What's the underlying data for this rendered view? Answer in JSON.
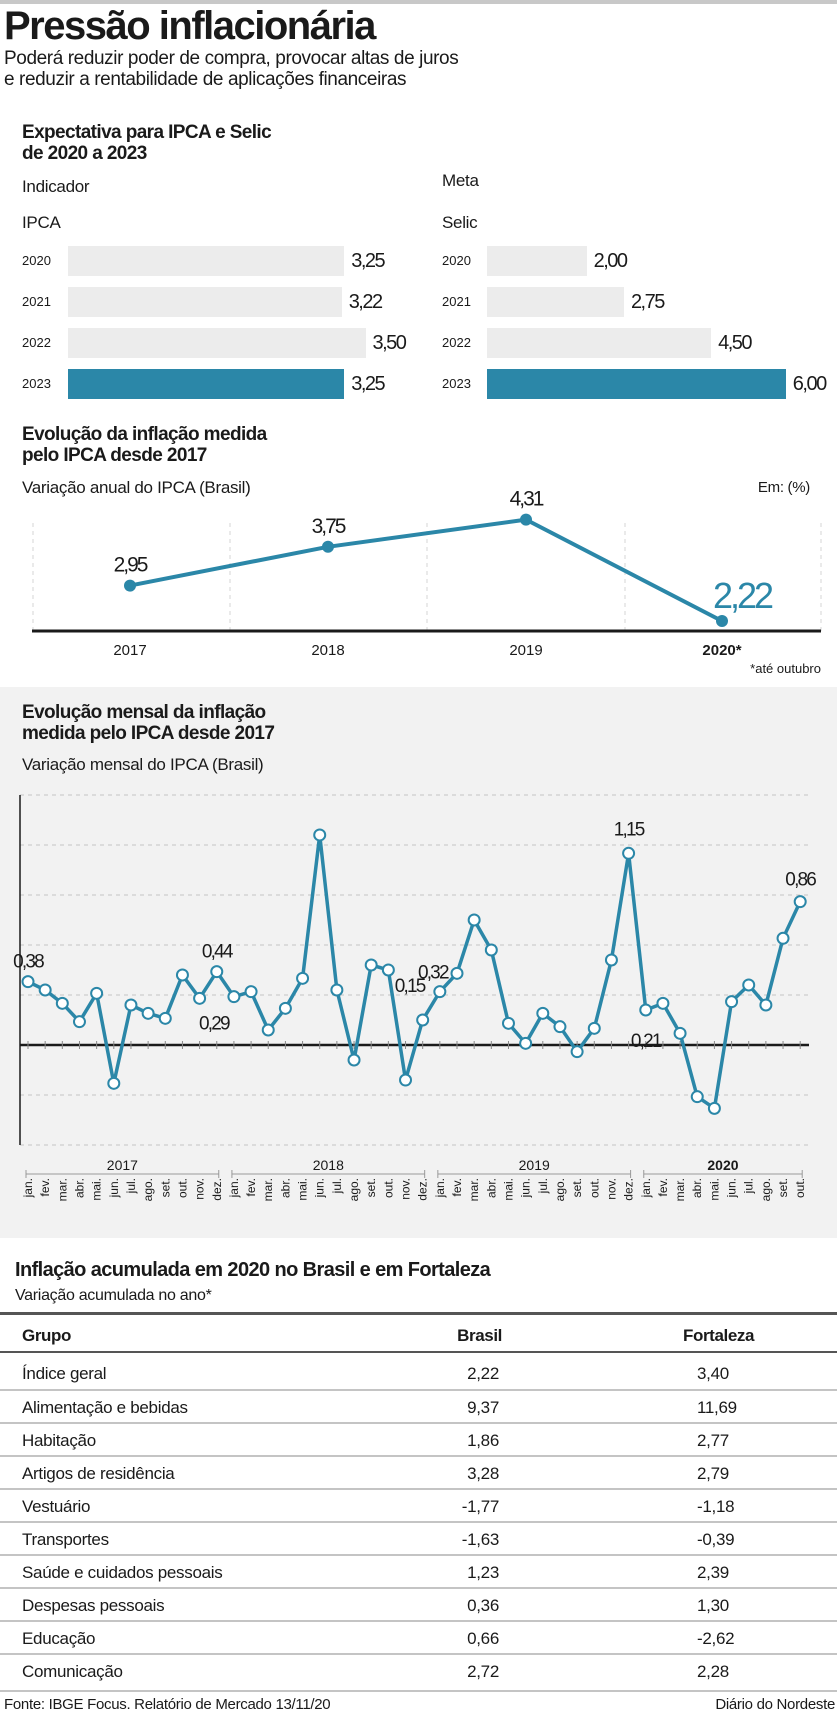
{
  "header": {
    "title": "Pressão inflacionária",
    "subtitle_lines": [
      "Poderá reduzir poder de compra, provocar altas de juros",
      "e reduzir a rentabilidade de aplicações financeiras"
    ]
  },
  "expectations": {
    "title_lines": [
      "Expectativa para IPCA e Selic",
      "de 2020 a 2023"
    ],
    "indicator_label": "Indicador",
    "meta_label": "Meta"
  },
  "colors": {
    "accent": "#2b87a8",
    "bar_base": "#ececec",
    "panel_bg": "#f2f2f2"
  },
  "chart_data": [
    {
      "type": "bar",
      "orientation": "horizontal",
      "title": "IPCA",
      "categories": [
        "2020",
        "2021",
        "2022",
        "2023"
      ],
      "values": [
        3.25,
        3.22,
        3.5,
        3.25
      ],
      "labels": [
        "3,25",
        "3,22",
        "3,50",
        "3,25"
      ],
      "highlight": "2023"
    },
    {
      "type": "bar",
      "orientation": "horizontal",
      "title": "Selic",
      "categories": [
        "2020",
        "2021",
        "2022",
        "2023"
      ],
      "values": [
        2.0,
        2.75,
        4.5,
        6.0
      ],
      "labels": [
        "2,00",
        "2,75",
        "4,50",
        "6,00"
      ],
      "highlight": "2023"
    },
    {
      "type": "line",
      "title_lines": [
        "Evolução da inflação medida",
        "pelo IPCA desde 2017"
      ],
      "subtitle": "Variação anual do IPCA (Brasil)",
      "unit_note": "Em: (%)",
      "categories": [
        "2017",
        "2018",
        "2019",
        "2020"
      ],
      "category_suffix": [
        "",
        "",
        "",
        "*"
      ],
      "values": [
        2.95,
        3.75,
        4.31,
        2.22
      ],
      "labels": [
        "2,95",
        "3,75",
        "4,31",
        "2,22"
      ],
      "footnote": "*até outubro",
      "grid": "vertical dashed"
    },
    {
      "type": "line",
      "title_lines": [
        "Evolução mensal da inflação",
        "medida pelo IPCA desde 2017"
      ],
      "subtitle": "Variação mensal do IPCA (Brasil)",
      "ylim": [
        -0.6,
        1.5
      ],
      "grid": "horizontal dashed every 0.3",
      "years": [
        {
          "year": "2017",
          "months": [
            "jan.",
            "fev.",
            "mar.",
            "abr.",
            "mai.",
            "jun.",
            "jul.",
            "ago.",
            "set.",
            "out.",
            "nov.",
            "dez."
          ],
          "values": [
            0.38,
            0.33,
            0.25,
            0.14,
            0.31,
            -0.23,
            0.24,
            0.19,
            0.16,
            0.42,
            0.28,
            0.44
          ],
          "labels": {
            "jan.": "0,38",
            "dez.": "0,44"
          }
        },
        {
          "year": "2018",
          "months": [
            "jan.",
            "fev.",
            "mar.",
            "abr.",
            "mai.",
            "jun.",
            "jul.",
            "ago.",
            "set.",
            "out.",
            "nov.",
            "dez."
          ],
          "values": [
            0.29,
            0.32,
            0.09,
            0.22,
            0.4,
            1.26,
            0.33,
            -0.09,
            0.48,
            0.45,
            -0.21,
            0.15
          ],
          "labels": {
            "jan.": "0,29",
            "dez.": "0,15"
          }
        },
        {
          "year": "2019",
          "months": [
            "jan.",
            "fev.",
            "mar.",
            "abr.",
            "mai.",
            "jun.",
            "jul.",
            "ago.",
            "set.",
            "out.",
            "nov.",
            "dez."
          ],
          "values": [
            0.32,
            0.43,
            0.75,
            0.57,
            0.13,
            0.01,
            0.19,
            0.11,
            -0.04,
            0.1,
            0.51,
            1.15
          ],
          "labels": {
            "jan.": "0,32",
            "dez.": "1,15"
          }
        },
        {
          "year": "2020",
          "bold": true,
          "months": [
            "jan.",
            "fev.",
            "mar.",
            "abr.",
            "mai.",
            "jun.",
            "jul.",
            "ago.",
            "set.",
            "out."
          ],
          "values": [
            0.21,
            0.25,
            0.07,
            -0.31,
            -0.38,
            0.26,
            0.36,
            0.24,
            0.64,
            0.86
          ],
          "labels": {
            "jan.": "0,21",
            "out.": "0,86"
          }
        }
      ]
    }
  ],
  "table": {
    "title": "Inflação acumulada em 2020 no Brasil e em Fortaleza",
    "subtitle": "Variação acumulada no ano*",
    "columns": [
      "Grupo",
      "Brasil",
      "Fortaleza"
    ],
    "rows": [
      [
        "Índice geral",
        "2,22",
        "3,40"
      ],
      [
        "Alimentação e bebidas",
        "9,37",
        "11,69"
      ],
      [
        "Habitação",
        "1,86",
        "2,77"
      ],
      [
        "Artigos de residência",
        "3,28",
        "2,79"
      ],
      [
        "Vestuário",
        "-1,77",
        "-1,18"
      ],
      [
        "Transportes",
        "-1,63",
        "-0,39"
      ],
      [
        "Saúde e cuidados pessoais",
        "1,23",
        "2,39"
      ],
      [
        "Despesas pessoais",
        "0,36",
        "1,30"
      ],
      [
        "Educação",
        "0,66",
        "-2,62"
      ],
      [
        "Comunicação",
        "2,72",
        "2,28"
      ]
    ]
  },
  "footer": {
    "source": "Fonte: IBGE Focus. Relatório de Mercado 13/11/20",
    "brand": "Diário do Nordeste"
  }
}
